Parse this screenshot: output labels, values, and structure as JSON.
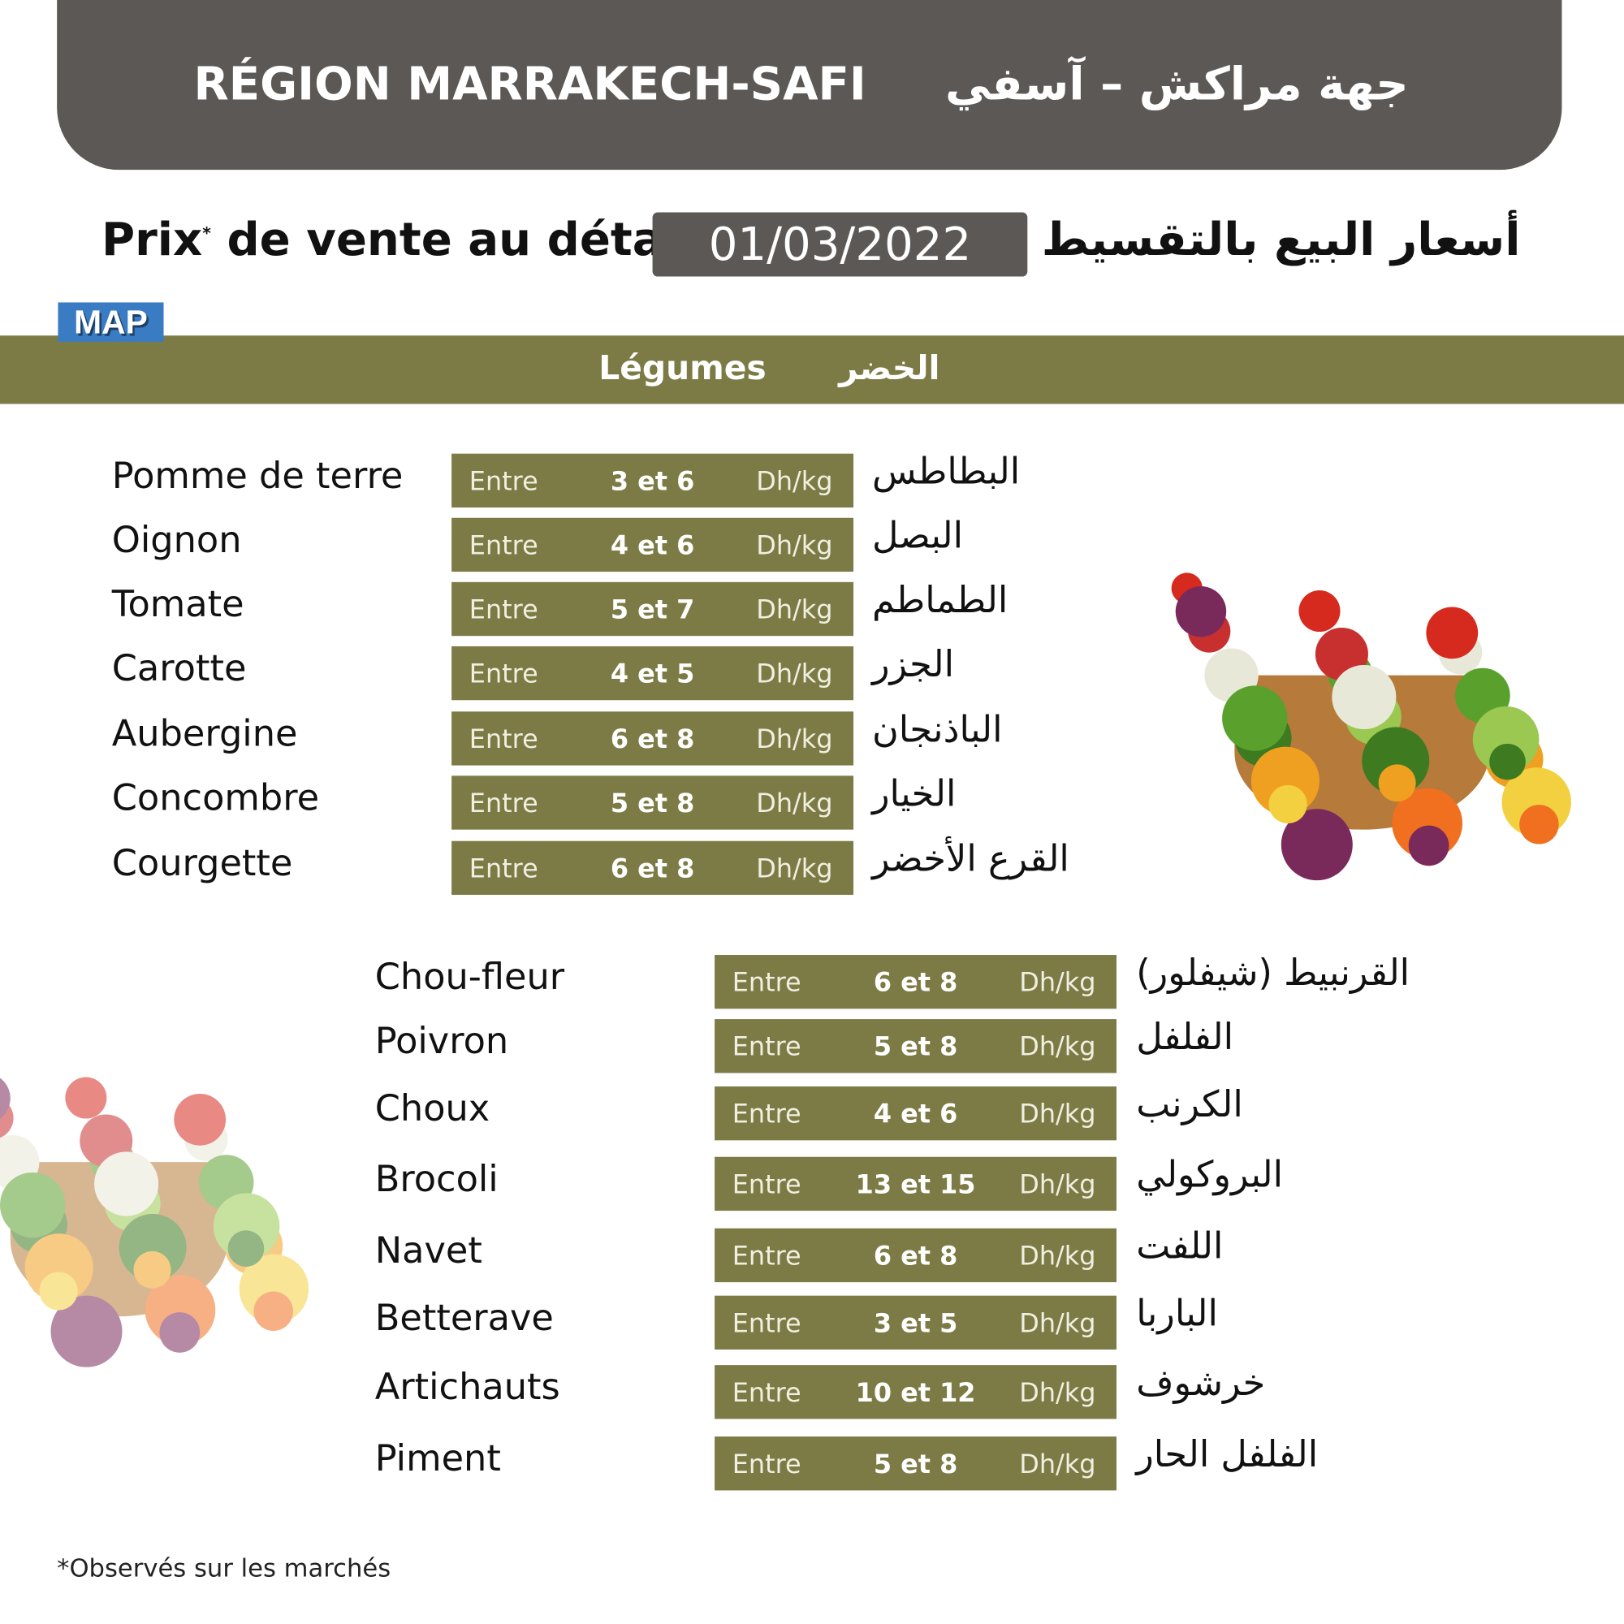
{
  "header": {
    "title_fr": "RÉGION MARRAKECH-SAFI",
    "title_ar": "جهة مراكش – آسفي"
  },
  "subtitle": {
    "fr": "Prix",
    "asterisk": "*",
    "fr_rest": "de vente au détail",
    "date": "01/03/2022",
    "ar": "أسعار البيع بالتقسيط"
  },
  "logo": {
    "text": "MAP",
    "color": "#3a7cc4"
  },
  "section": {
    "fr": "Légumes",
    "ar": "الخضر",
    "color": "#7c7b45"
  },
  "prefix": "Entre",
  "unit": "Dh/kg",
  "group1": [
    {
      "fr": "Pomme de terre",
      "range": "3 et 6",
      "ar": "البطاطس"
    },
    {
      "fr": "Oignon",
      "range": "4 et 6",
      "ar": "البصل"
    },
    {
      "fr": "Tomate",
      "range": "5 et 7",
      "ar": "الطماطم"
    },
    {
      "fr": "Carotte",
      "range": "4 et 5",
      "ar": "الجزر"
    },
    {
      "fr": "Aubergine",
      "range": "6 et 8",
      "ar": "الباذنجان"
    },
    {
      "fr": "Concombre",
      "range": "5 et 8",
      "ar": "الخيار"
    },
    {
      "fr": "Courgette",
      "range": "6 et 8",
      "ar": "القرع الأخضر"
    }
  ],
  "group2": [
    {
      "fr": "Chou-fleur",
      "range": "6 et 8",
      "ar": "القرنبيط (شيفلور)"
    },
    {
      "fr": "Poivron",
      "range": "5 et 8",
      "ar": "الفلفل"
    },
    {
      "fr": "Choux",
      "range": "4 et 6",
      "ar": "الكرنب"
    },
    {
      "fr": "Brocoli",
      "range": "13 et 15",
      "ar": "البروكولي"
    },
    {
      "fr": "Navet",
      "range": "6 et 8",
      "ar": "اللفت"
    },
    {
      "fr": "Betterave",
      "range": "3 et 5",
      "ar": "الباربا"
    },
    {
      "fr": "Artichauts",
      "range": "10 et 12",
      "ar": "خرشوف"
    },
    {
      "fr": "Piment",
      "range": "5 et 8",
      "ar": "الفلفل الحار"
    }
  ],
  "footnote": "*Observés sur les marchés"
}
